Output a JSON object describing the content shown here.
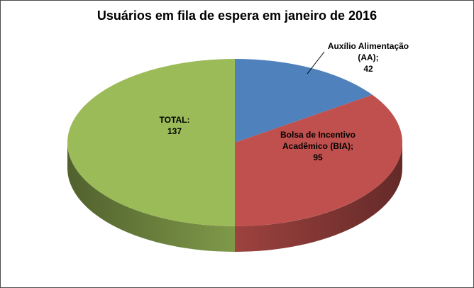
{
  "frame": {
    "background": "#ffffff",
    "border_color": "#4a4a4a"
  },
  "chart_data": {
    "type": "pie",
    "style": "pie-3d",
    "title": "Usuários em fila de espera em janeiro de 2016",
    "direction": "clockwise",
    "start_angle_deg": 0,
    "legend": "none",
    "callout_line_color": "#000000",
    "slices": [
      {
        "label": "Auxílio Alimentação (AA)",
        "value": 42,
        "color": "#4f81bd",
        "label_lines": [
          "Auxílio Alimentação",
          "(AA);",
          "42"
        ],
        "label_placement": "outside-callout"
      },
      {
        "label": "Bolsa de Incentivo Acadêmico (BIA)",
        "value": 95,
        "color": "#c0504d",
        "label_lines": [
          "Bolsa de Incentivo",
          "Acadêmico (BIA);",
          "95"
        ],
        "label_placement": "inside"
      },
      {
        "label": "TOTAL",
        "value": 137,
        "color": "#9bbb59",
        "label_lines": [
          "TOTAL:",
          "137"
        ],
        "label_placement": "inside"
      }
    ]
  }
}
